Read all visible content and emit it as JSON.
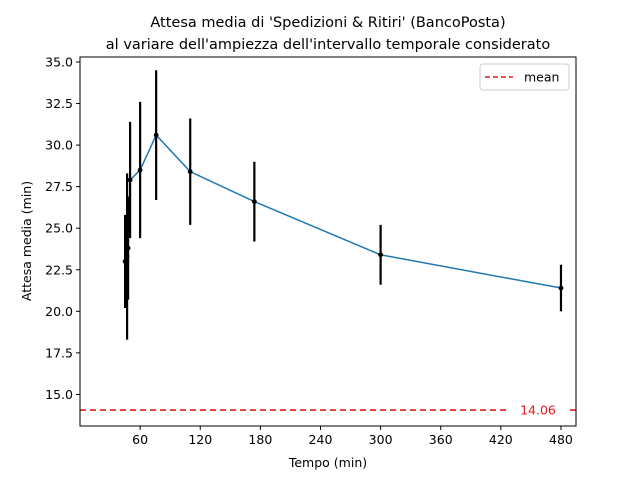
{
  "chart_data": {
    "type": "line",
    "title_line1": "Attesa media di 'Spedizioni & Ritiri' (BancoPosta)",
    "title_line2": "al variare dell'ampiezza dell'intervallo temporale considerato",
    "xlabel": "Tempo (min)",
    "ylabel": "Attesa media (min)",
    "xlim": [
      0,
      495
    ],
    "ylim": [
      13.1,
      35.3
    ],
    "xticks": [
      60,
      120,
      180,
      240,
      300,
      360,
      420,
      480
    ],
    "yticks": [
      15.0,
      17.5,
      20.0,
      22.5,
      25.0,
      27.5,
      30.0,
      32.5,
      35.0
    ],
    "xtick_labels": [
      "60",
      "120",
      "180",
      "240",
      "300",
      "360",
      "420",
      "480"
    ],
    "ytick_labels": [
      "15.0",
      "17.5",
      "20.0",
      "22.5",
      "25.0",
      "27.5",
      "30.0",
      "32.5",
      "35.0"
    ],
    "series": [
      {
        "x": [
          45,
          47,
          48,
          50,
          60,
          76,
          110,
          174,
          300,
          480
        ],
        "y": [
          23.0,
          23.3,
          23.8,
          27.9,
          28.5,
          30.6,
          28.4,
          26.6,
          23.4,
          21.4
        ],
        "err": [
          2.8,
          5.0,
          3.1,
          3.5,
          4.1,
          3.9,
          3.2,
          2.4,
          1.8,
          1.4
        ],
        "color": "#1f77b4"
      }
    ],
    "mean": {
      "value": 14.06,
      "label": "14.06",
      "legend": "mean",
      "color": "#e41a1c"
    },
    "legend_position": "top-right",
    "grid": false
  }
}
